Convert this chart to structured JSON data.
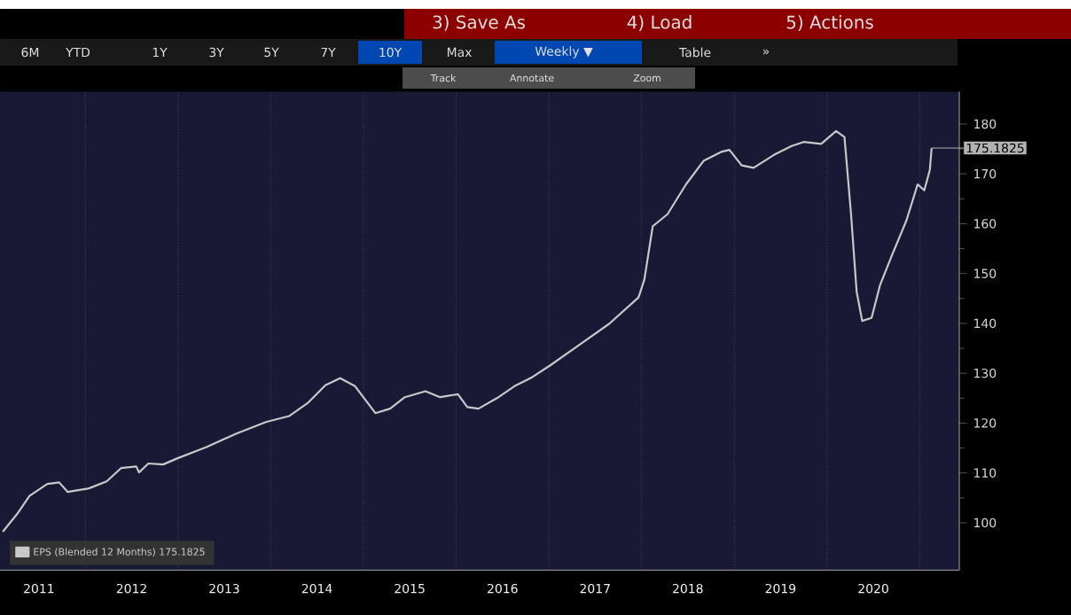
{
  "chart_data": {
    "type": "line",
    "annotations": [
      "3) Save As",
      "4) Load",
      "5) Actions",
      "6M",
      "YTD",
      "1Y",
      "3Y",
      "5Y",
      "7Y",
      "10Y",
      "Max",
      "Weekly ▼",
      "Table",
      "»",
      "Track",
      "Annotate",
      "Zoom",
      {
        "text": "175.1825",
        "x": "2021-02-17",
        "y": 175.1825
      }
    ],
    "series": [
      {
        "name": "EPS (Blended 12 Months) 175.1825",
        "color": "#c8c8c8",
        "x": [
          "2011-02-10",
          "2011-04-08",
          "2011-05-26",
          "2011-08-04",
          "2011-09-20",
          "2011-10-23",
          "2012-01-15",
          "2012-03-25",
          "2012-05-22",
          "2012-07-20",
          "2012-07-31",
          "2012-09-06",
          "2012-11-03",
          "2012-12-28",
          "2013-04-23",
          "2013-08-19",
          "2013-12-13",
          "2014-03-14",
          "2014-05-26",
          "2014-08-04",
          "2014-10-01",
          "2014-11-29",
          "2015-02-17",
          "2015-04-16",
          "2015-06-13",
          "2015-09-02",
          "2015-10-30",
          "2016-01-08",
          "2016-02-14",
          "2016-03-29",
          "2016-06-10",
          "2016-08-18",
          "2016-10-27",
          "2017-01-04",
          "2017-05-01",
          "2017-08-26",
          "2017-12-20",
          "2018-01-12",
          "2018-02-14",
          "2018-04-13",
          "2018-06-25",
          "2018-09-02",
          "2018-11-10",
          "2018-12-13",
          "2019-01-30",
          "2019-03-18",
          "2019-06-06",
          "2019-08-15",
          "2019-10-01",
          "2019-12-09",
          "2020-02-06",
          "2020-03-10",
          "2020-04-05",
          "2020-04-27",
          "2020-05-19",
          "2020-06-25",
          "2020-07-28",
          "2020-09-13",
          "2020-11-10",
          "2020-12-24",
          "2021-01-19",
          "2021-02-10",
          "2021-02-17"
        ],
        "values": [
          98.2,
          101.8,
          105.4,
          107.8,
          108.1,
          106.2,
          106.9,
          108.3,
          111.0,
          111.3,
          110.1,
          111.9,
          111.7,
          112.9,
          115.2,
          117.9,
          120.2,
          121.4,
          124.0,
          127.6,
          129.0,
          127.4,
          122.0,
          122.9,
          125.2,
          126.4,
          125.2,
          125.8,
          123.2,
          122.9,
          125.0,
          127.4,
          129.2,
          131.5,
          135.7,
          139.9,
          145.2,
          148.8,
          159.5,
          161.9,
          167.9,
          172.6,
          174.4,
          174.8,
          171.7,
          171.2,
          173.8,
          175.6,
          176.4,
          176.0,
          178.6,
          177.4,
          161.9,
          146.4,
          140.5,
          141.1,
          147.6,
          153.6,
          160.7,
          167.9,
          166.7,
          170.8,
          175.1825
        ]
      }
    ],
    "xlim": [
      "2011-01-30",
      "2021-06-06"
    ],
    "xticks": [
      {
        "value": "2011-07-02",
        "label": "2011"
      },
      {
        "value": "2012-01-01",
        "label": null
      },
      {
        "value": "2012-07-02",
        "label": "2012"
      },
      {
        "value": "2013-01-01",
        "label": null
      },
      {
        "value": "2013-07-02",
        "label": "2013"
      },
      {
        "value": "2014-01-01",
        "label": null
      },
      {
        "value": "2014-07-02",
        "label": "2014"
      },
      {
        "value": "2015-01-01",
        "label": null
      },
      {
        "value": "2015-07-02",
        "label": "2015"
      },
      {
        "value": "2016-01-01",
        "label": null
      },
      {
        "value": "2016-07-02",
        "label": "2016"
      },
      {
        "value": "2017-01-01",
        "label": null
      },
      {
        "value": "2017-07-02",
        "label": "2017"
      },
      {
        "value": "2018-01-01",
        "label": null
      },
      {
        "value": "2018-07-02",
        "label": "2018"
      },
      {
        "value": "2019-01-01",
        "label": null
      },
      {
        "value": "2019-07-02",
        "label": "2019"
      },
      {
        "value": "2020-01-01",
        "label": null
      },
      {
        "value": "2020-07-02",
        "label": "2020"
      },
      {
        "value": "2021-01-01",
        "label": null
      }
    ],
    "ylim": [
      90.5,
      186.5
    ],
    "yticks": [
      100,
      110,
      120,
      130,
      140,
      150,
      160,
      170,
      180
    ],
    "grid": "x",
    "legend": "bottom left",
    "marker": "none",
    "line_style": "solid"
  }
}
